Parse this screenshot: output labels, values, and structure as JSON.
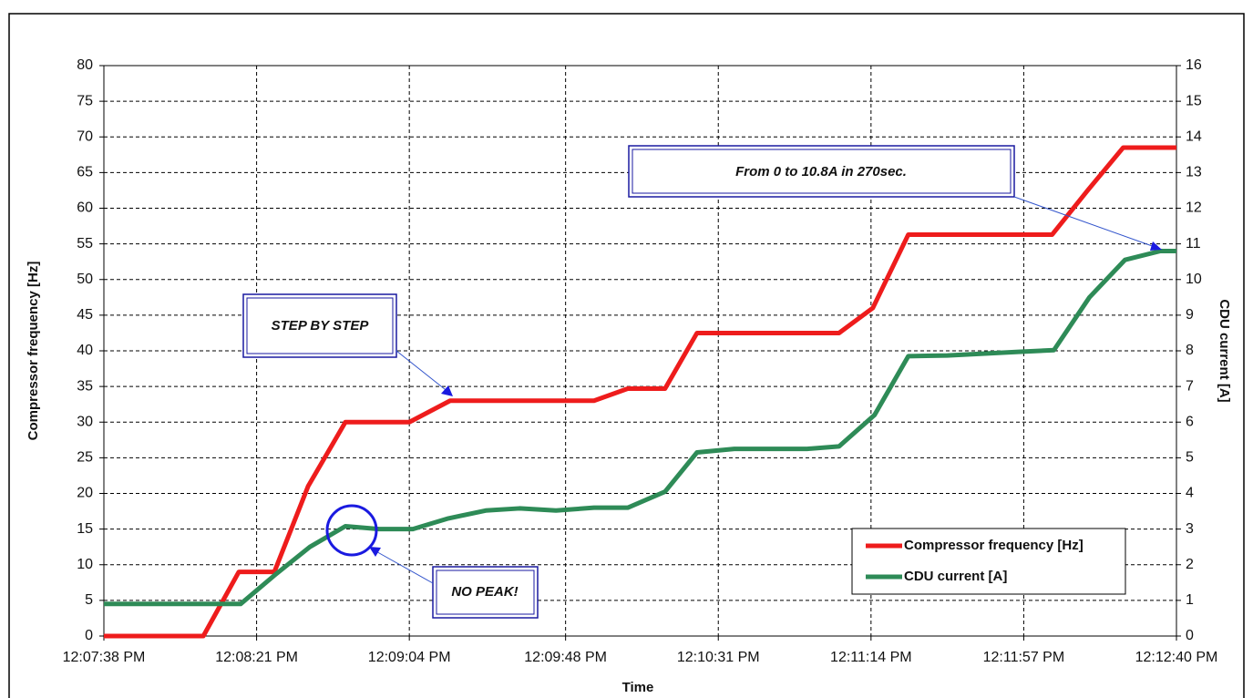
{
  "chart_data": {
    "type": "line",
    "xlabel": "Time",
    "ylabel": "Compressor frequency [Hz]",
    "y2label": "CDU current [A]",
    "xlim": [
      0,
      302
    ],
    "xticks": [
      {
        "value": 0,
        "label": "12:07:38 PM"
      },
      {
        "value": 43,
        "label": "12:08:21 PM"
      },
      {
        "value": 86,
        "label": "12:09:04 PM"
      },
      {
        "value": 130,
        "label": "12:09:48 PM"
      },
      {
        "value": 173,
        "label": "12:10:31 PM"
      },
      {
        "value": 216,
        "label": "12:11:14 PM"
      },
      {
        "value": 259,
        "label": "12:11:57 PM"
      },
      {
        "value": 302,
        "label": "12:12:40 PM"
      }
    ],
    "ylim": [
      0,
      80
    ],
    "yticks": [
      0,
      5,
      10,
      15,
      20,
      25,
      30,
      35,
      40,
      45,
      50,
      55,
      60,
      65,
      70,
      75,
      80
    ],
    "y2lim": [
      0,
      16
    ],
    "y2ticks": [
      0,
      1,
      2,
      3,
      4,
      5,
      6,
      7,
      8,
      9,
      10,
      11,
      12,
      13,
      14,
      15,
      16
    ],
    "grid": true,
    "legend": "lower right",
    "series": [
      {
        "name": "Compressor frequency [Hz]",
        "color": "#ee1c1c",
        "x": [
          0,
          28,
          38,
          48,
          57.5,
          68,
          86,
          97.5,
          138,
          147.5,
          158,
          167,
          207,
          216.5,
          226.5,
          267,
          277,
          287,
          302
        ],
        "values": [
          0,
          0,
          9,
          9,
          21,
          30,
          30,
          33,
          33,
          34.7,
          34.7,
          42.5,
          42.5,
          46,
          56.3,
          56.3,
          62.5,
          68.5,
          68.5
        ]
      },
      {
        "name": "CDU current [A]",
        "color": "#2e8b57",
        "axis": "y2",
        "x": [
          0,
          38.5,
          48,
          58,
          68,
          77.5,
          87,
          97,
          107.5,
          117,
          127.3,
          138,
          147.5,
          158,
          167,
          177.5,
          198,
          207,
          217,
          226.5,
          237.5,
          257.5,
          267.5,
          277.5,
          287.5,
          297.5,
          302
        ],
        "values": [
          0.9,
          0.9,
          1.7,
          2.5,
          3.08,
          3.0,
          3.0,
          3.3,
          3.52,
          3.58,
          3.52,
          3.6,
          3.6,
          4.05,
          5.15,
          5.25,
          5.25,
          5.32,
          6.2,
          7.85,
          7.87,
          7.97,
          8.02,
          9.5,
          10.55,
          10.8,
          10.8
        ]
      }
    ],
    "annotations": [
      "STEP BY STEP",
      "NO PEAK!",
      "From 0 to 10.8A in 270sec."
    ]
  }
}
